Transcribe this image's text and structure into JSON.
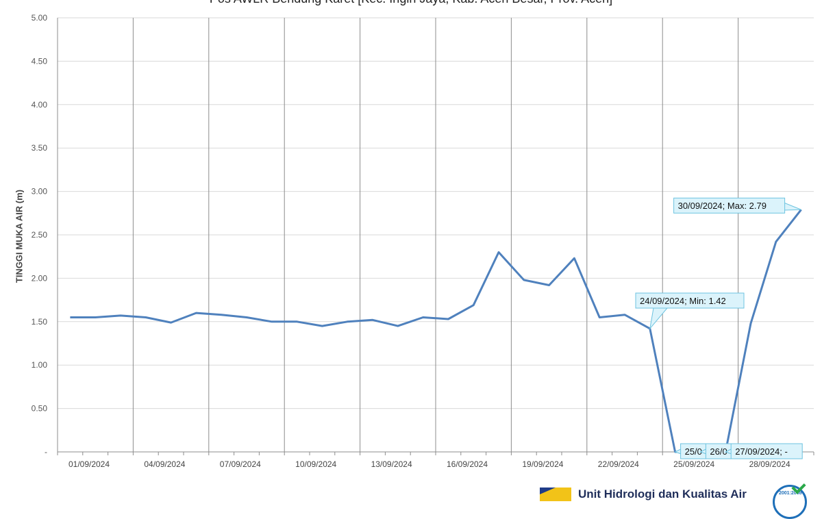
{
  "chart_data": {
    "type": "line",
    "title": "Pos AWLR Bendung Karet [Kec. Ingin Jaya, Kab. Aceh Besar, Prov. Aceh]",
    "xlabel": "",
    "ylabel": "TINGGI MUKA AIR (m)",
    "ylim": [
      0,
      5
    ],
    "y_ticks": [
      "-",
      "0.50",
      "1.00",
      "1.50",
      "2.00",
      "2.50",
      "3.00",
      "3.50",
      "4.00",
      "4.50",
      "5.00"
    ],
    "x_ticks": [
      "01/09/2024",
      "04/09/2024",
      "07/09/2024",
      "10/09/2024",
      "13/09/2024",
      "16/09/2024",
      "19/09/2024",
      "22/09/2024",
      "25/09/2024",
      "28/09/2024"
    ],
    "grid": "vertical-major and horizontal-minor",
    "series_color": "#4f81bd",
    "x": [
      "01/09/2024",
      "02/09/2024",
      "03/09/2024",
      "04/09/2024",
      "05/09/2024",
      "06/09/2024",
      "07/09/2024",
      "08/09/2024",
      "09/09/2024",
      "10/09/2024",
      "11/09/2024",
      "12/09/2024",
      "13/09/2024",
      "14/09/2024",
      "15/09/2024",
      "16/09/2024",
      "17/09/2024",
      "18/09/2024",
      "19/09/2024",
      "20/09/2024",
      "21/09/2024",
      "22/09/2024",
      "23/09/2024",
      "24/09/2024",
      "25/09/2024",
      "26/09/2024",
      "27/09/2024",
      "28/09/2024",
      "29/09/2024",
      "30/09/2024"
    ],
    "values": [
      1.55,
      1.55,
      1.57,
      1.55,
      1.49,
      1.6,
      1.58,
      1.55,
      1.5,
      1.5,
      1.45,
      1.5,
      1.52,
      1.45,
      1.55,
      1.53,
      1.69,
      2.3,
      1.98,
      1.92,
      2.23,
      1.55,
      1.58,
      1.42,
      0,
      0,
      0,
      1.48,
      2.42,
      2.79
    ],
    "annotations": [
      {
        "text": "30/09/2024; Max: 2.79",
        "x": "30/09/2024",
        "y": 2.79
      },
      {
        "text": "24/09/2024; Min: 1.42",
        "x": "24/09/2024",
        "y": 1.42
      },
      {
        "text": "25/0",
        "x": "25/09/2024",
        "y": 0
      },
      {
        "text": "26/0",
        "x": "26/09/2024",
        "y": 0
      },
      {
        "text": "27/09/2024;  -",
        "x": "27/09/2024",
        "y": 0
      }
    ]
  },
  "footer": {
    "org_name": "Unit Hidrologi dan Kualitas Air",
    "badge_text": "2001:2008"
  }
}
